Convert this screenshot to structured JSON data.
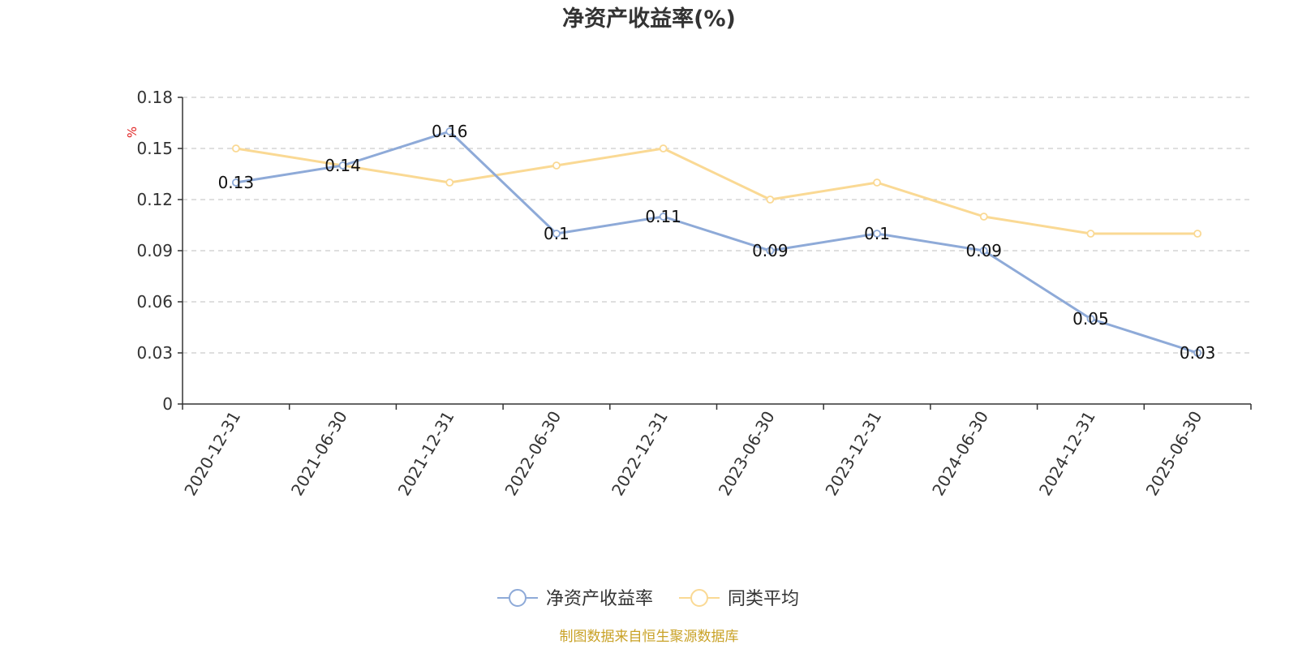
{
  "chart_data": {
    "type": "line",
    "title": "净资产收益率(%)",
    "unit": "%",
    "categories": [
      "2020-12-31",
      "2021-06-30",
      "2021-12-31",
      "2022-06-30",
      "2022-12-31",
      "2023-06-30",
      "2023-12-31",
      "2024-06-30",
      "2024-12-31",
      "2025-06-30"
    ],
    "ylim": [
      0,
      0.18
    ],
    "yticks": [
      "0",
      "0.03",
      "0.06",
      "0.09",
      "0.12",
      "0.15",
      "0.18"
    ],
    "ytick_values": [
      0,
      0.03,
      0.06,
      0.09,
      0.12,
      0.15,
      0.18
    ],
    "grid": true,
    "legend_position": "bottom-center",
    "series": [
      {
        "name": "净资产收益率",
        "color": "#8eaad8",
        "values": [
          0.13,
          0.14,
          0.16,
          0.1,
          0.11,
          0.09,
          0.1,
          0.09,
          0.05,
          0.03
        ],
        "labels": [
          "0.13",
          "0.14",
          "0.16",
          "0.1",
          "0.11",
          "0.09",
          "0.1",
          "0.09",
          "0.05",
          "0.03"
        ],
        "show_labels": true
      },
      {
        "name": "同类平均",
        "color": "#fad994",
        "values": [
          0.15,
          0.14,
          0.13,
          0.14,
          0.15,
          0.12,
          0.13,
          0.11,
          0.1,
          0.1
        ],
        "show_labels": false
      }
    ]
  },
  "source": "制图数据来自恒生聚源数据库"
}
